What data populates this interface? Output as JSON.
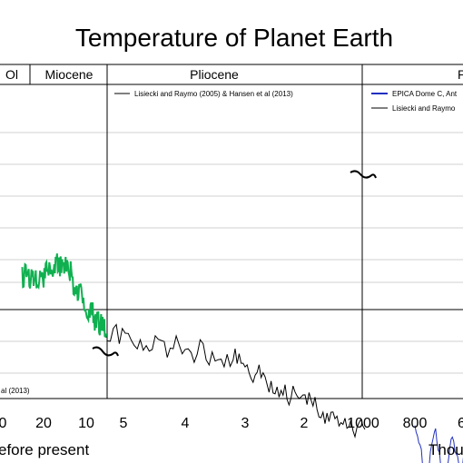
{
  "chart_data": {
    "type": "line",
    "title": "Temperature of Planet Earth",
    "eras": [
      "Ol",
      "Miocene",
      "Pliocene",
      "P"
    ],
    "x_ticks_millions": [
      "0",
      "20",
      "10"
    ],
    "x_ticks_pliocene": [
      "5",
      "4",
      "3",
      "2"
    ],
    "x_ticks_thousands": [
      "1000",
      "800",
      "6"
    ],
    "xlabel_left": "efore present",
    "xlabel_right": "Thou",
    "legend_mid": "Lisiecki and Raymo (2005) & Hansen et al (2013)",
    "legend_right": [
      "EPICA Dome C, Ant",
      "Lisiecki and Raymo"
    ],
    "source_left": "al (2013)",
    "series": [
      {
        "name": "Hansen et al (2013)",
        "color": "#10b050",
        "x_ma": [
          25,
          24,
          23,
          22,
          21,
          20,
          19,
          18,
          17,
          16,
          15,
          14,
          13,
          12,
          11,
          10,
          9,
          8,
          7,
          6,
          5.3
        ],
        "y": [
          0.3,
          0.33,
          0.29,
          0.32,
          0.28,
          0.3,
          0.33,
          0.36,
          0.42,
          0.4,
          0.45,
          0.38,
          0.25,
          0.18,
          0.1,
          0.05,
          -0.02,
          -0.08,
          -0.12,
          -0.18,
          -0.22
        ]
      },
      {
        "name": "Lisiecki and Raymo (2005) & Hansen et al (2013)",
        "color": "#000000",
        "x_ma": [
          5.3,
          5.0,
          4.7,
          4.4,
          4.1,
          3.8,
          3.5,
          3.2,
          3.0,
          2.8,
          2.6,
          2.4,
          2.2,
          2.0,
          1.8,
          1.6,
          1.4,
          1.2,
          1.0
        ],
        "y": [
          -0.2,
          -0.28,
          -0.3,
          -0.33,
          -0.36,
          -0.38,
          -0.4,
          -0.45,
          -0.52,
          -0.6,
          -0.68,
          -0.74,
          -0.8,
          -0.85,
          -0.9,
          -0.95,
          -1.0,
          -1.06,
          -1.1
        ]
      },
      {
        "name": "EPICA Dome C",
        "color": "#2030c0",
        "x_ka": [
          800,
          780,
          760,
          740,
          720,
          700,
          680,
          660,
          640,
          620,
          600
        ],
        "y": [
          -1.05,
          -1.25,
          -1.55,
          -1.35,
          -1.1,
          -1.4,
          -1.6,
          -1.15,
          -1.3,
          -1.45,
          -1.2
        ]
      }
    ]
  }
}
